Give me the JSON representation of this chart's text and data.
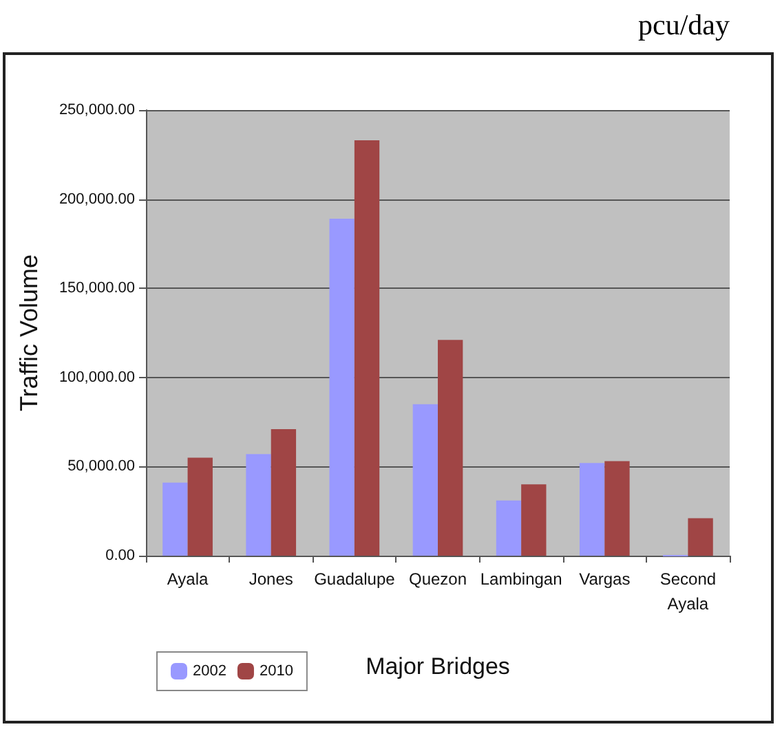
{
  "chart_data": {
    "type": "bar",
    "categories": [
      "Ayala",
      "Jones",
      "Guadalupe",
      "Quezon",
      "Lambingan",
      "Vargas",
      "Second\nAyala"
    ],
    "series": [
      {
        "name": "2002",
        "color": "#9999ff",
        "values": [
          41000,
          57000,
          189000,
          85000,
          31000,
          52000,
          0
        ]
      },
      {
        "name": "2010",
        "color": "#a04545",
        "values": [
          55000,
          71000,
          233000,
          121000,
          40000,
          53000,
          21000
        ]
      }
    ],
    "xlabel": "Major Bridges",
    "ylabel": "Traffic Volume",
    "annotations": [
      "pcu/day"
    ],
    "ylim": [
      0,
      250000
    ],
    "yticks": [
      {
        "value": 0,
        "label": "0.00"
      },
      {
        "value": 50000,
        "label": "50,000.00"
      },
      {
        "value": 100000,
        "label": "100,000.00"
      },
      {
        "value": 150000,
        "label": "150,000.00"
      },
      {
        "value": 200000,
        "label": "200,000.00"
      },
      {
        "value": 250000,
        "label": "250,000.00"
      }
    ],
    "grid": true,
    "legend": "bottom left"
  }
}
